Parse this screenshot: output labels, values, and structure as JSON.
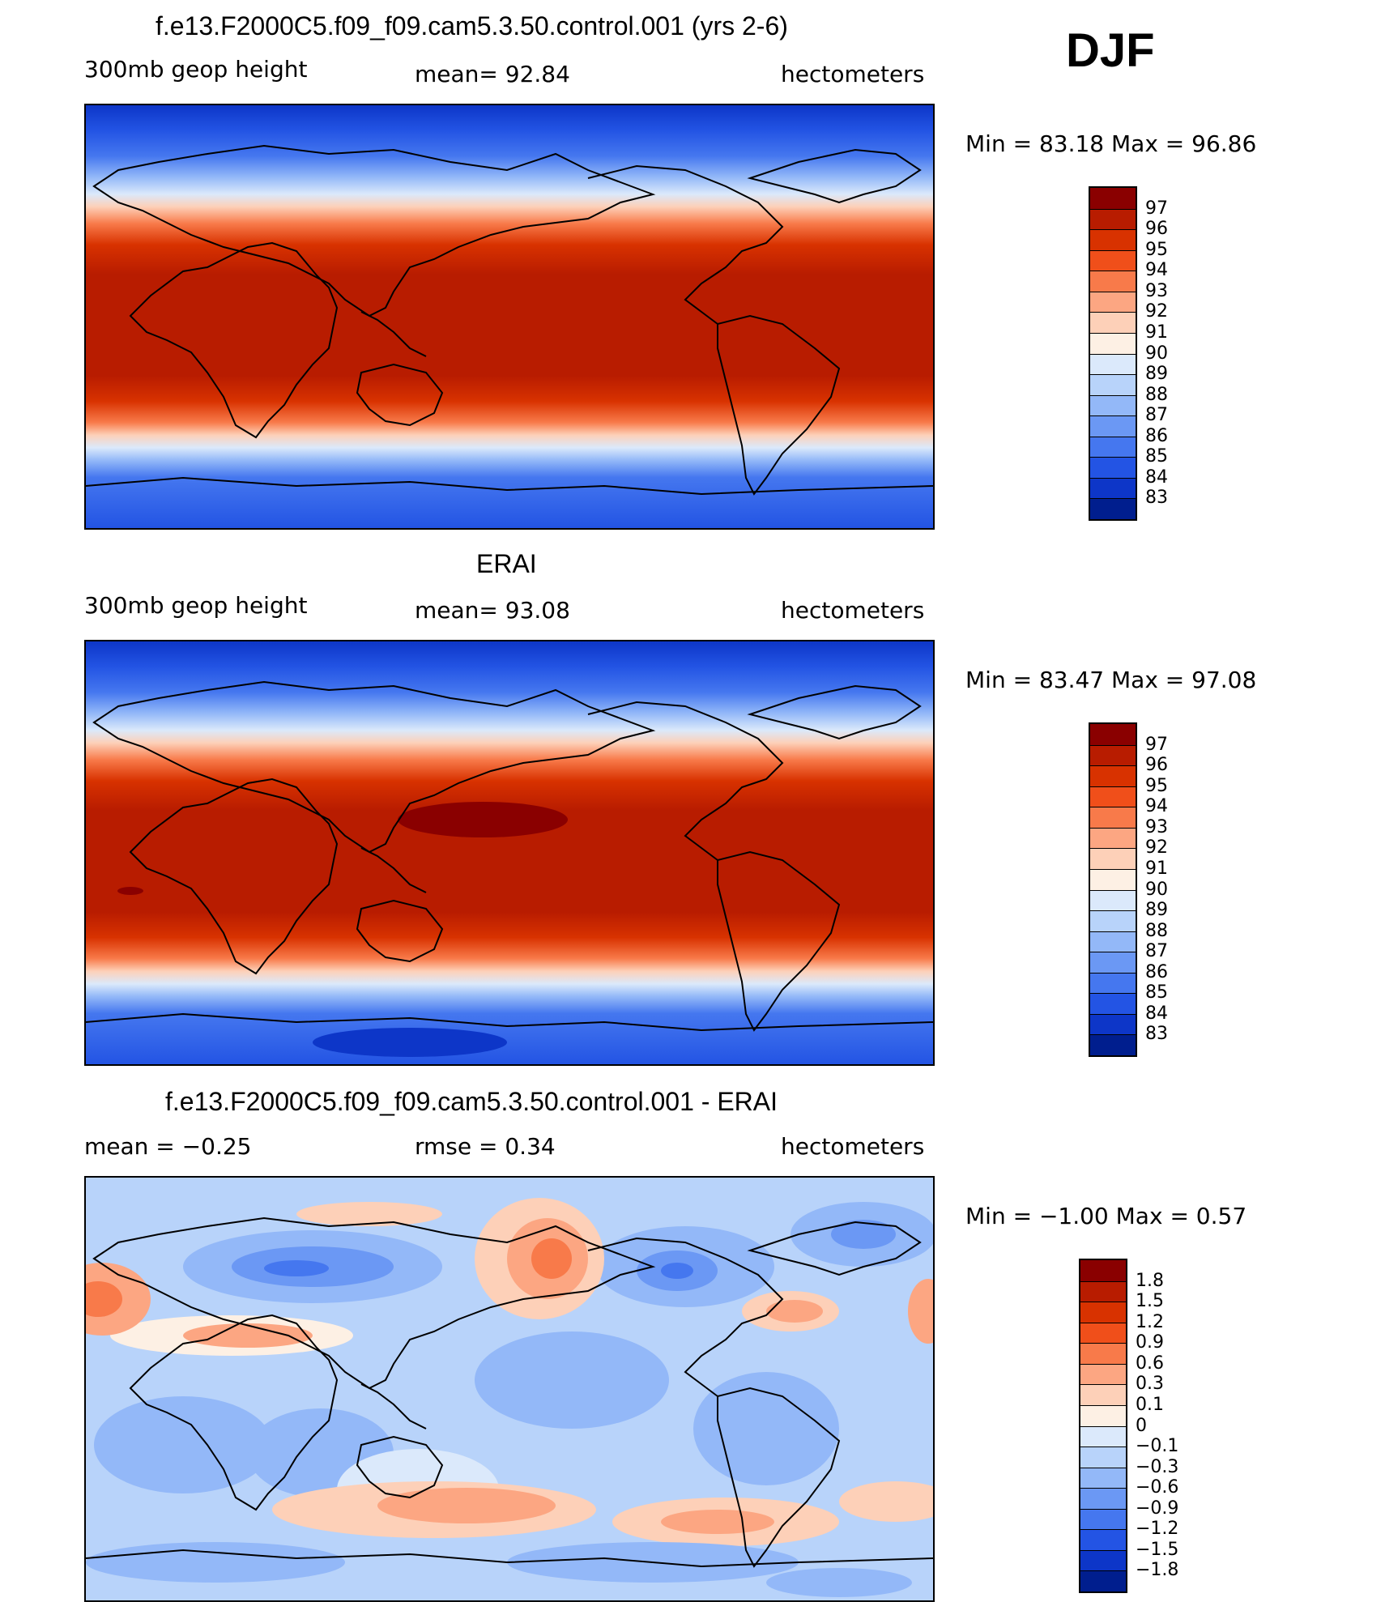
{
  "figure": {
    "season": "DJF"
  },
  "panels": [
    {
      "title": "f.e13.F2000C5.f09_f09.cam5.3.50.control.001 (yrs 2-6)",
      "left_label": "300mb geop height",
      "center_label": "mean=  92.84",
      "right_label": "hectometers",
      "minmax": "Min =   83.18  Max =   96.86"
    },
    {
      "title": "ERAI",
      "left_label": "300mb geop height",
      "center_label": "mean=  93.08",
      "right_label": "hectometers",
      "minmax": "Min =   83.47  Max =   97.08"
    },
    {
      "title": "f.e13.F2000C5.f09_f09.cam5.3.50.control.001 - ERAI",
      "left_label": "mean =   −0.25",
      "center_label": "rmse =    0.34",
      "right_label": "hectometers",
      "minmax": "Min =   −1.00  Max =    0.57"
    }
  ],
  "colorbars": {
    "height": {
      "labels": [
        "97",
        "96",
        "95",
        "94",
        "93",
        "92",
        "91",
        "90",
        "89",
        "88",
        "87",
        "86",
        "85",
        "84",
        "83"
      ],
      "colors": [
        "#8a0000",
        "#b81c00",
        "#d83200",
        "#f04f1a",
        "#f87a4a",
        "#fca682",
        "#fdd0b8",
        "#fdf0e4",
        "#dbe9fb",
        "#b8d3fa",
        "#93b8f8",
        "#6b98f4",
        "#4577ef",
        "#2354e4",
        "#0d36c8",
        "#001e8e"
      ]
    },
    "diff": {
      "labels": [
        "1.8",
        "1.5",
        "1.2",
        "0.9",
        "0.6",
        "0.3",
        "0.1",
        "0",
        "−0.1",
        "−0.3",
        "−0.6",
        "−0.9",
        "−1.2",
        "−1.5",
        "−1.8"
      ],
      "colors": [
        "#8a0000",
        "#b81c00",
        "#d83200",
        "#f04f1a",
        "#f87a4a",
        "#fca682",
        "#fdd0b8",
        "#fdf0e4",
        "#dbe9fb",
        "#b8d3fa",
        "#93b8f8",
        "#6b98f4",
        "#4577ef",
        "#2354e4",
        "#0d36c8",
        "#001e8e"
      ]
    }
  },
  "chart_data": [
    {
      "type": "heatmap",
      "title": "f.e13.F2000C5.f09_f09.cam5.3.50.control.001 (yrs 2-6)",
      "variable": "300mb geop height",
      "units": "hectometers",
      "mean": 92.84,
      "min": 83.18,
      "max": 96.86,
      "contour_levels": [
        83,
        84,
        85,
        86,
        87,
        88,
        89,
        90,
        91,
        92,
        93,
        94,
        95,
        96,
        97
      ]
    },
    {
      "type": "heatmap",
      "title": "ERAI",
      "variable": "300mb geop height",
      "units": "hectometers",
      "mean": 93.08,
      "min": 83.47,
      "max": 97.08,
      "contour_levels": [
        83,
        84,
        85,
        86,
        87,
        88,
        89,
        90,
        91,
        92,
        93,
        94,
        95,
        96,
        97
      ]
    },
    {
      "type": "heatmap",
      "title": "f.e13.F2000C5.f09_f09.cam5.3.50.control.001 - ERAI",
      "units": "hectometers",
      "mean": -0.25,
      "rmse": 0.34,
      "min": -1.0,
      "max": 0.57,
      "contour_levels": [
        -1.8,
        -1.5,
        -1.2,
        -0.9,
        -0.6,
        -0.3,
        -0.1,
        0,
        0.1,
        0.3,
        0.6,
        0.9,
        1.2,
        1.5,
        1.8
      ]
    }
  ]
}
